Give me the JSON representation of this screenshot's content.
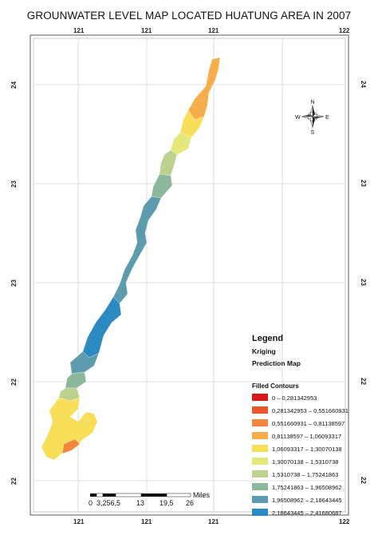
{
  "title": "GROUNWATER LEVEL MAP LOCATED HUATUNG AREA IN 2007",
  "top_ticks": [
    "121",
    "121",
    "121",
    "122"
  ],
  "bottom_ticks": [
    "121",
    "121",
    "121",
    "122"
  ],
  "left_ticks": [
    "24",
    "23",
    "23",
    "22",
    "22"
  ],
  "right_ticks": [
    "24",
    "23",
    "23",
    "22",
    "22"
  ],
  "north_arrow": {
    "n": "N",
    "s": "S",
    "e": "E",
    "w": "W"
  },
  "legend": {
    "title": "Legend",
    "method": "Kriging",
    "layer": "Prediction Map",
    "section": "Filled Contours",
    "classes": [
      {
        "label": "0 – 0,281342953",
        "color": "#d7191c"
      },
      {
        "label": "0,281342953 – 0,551660931",
        "color": "#e9562c"
      },
      {
        "label": "0,551660931 – 0,81138597",
        "color": "#f3873f"
      },
      {
        "label": "0,81138597 – 1,06093317",
        "color": "#f6ae4d"
      },
      {
        "label": "1,06093317 – 1,30070138",
        "color": "#f8df5a"
      },
      {
        "label": "1,30070138 – 1,5310738",
        "color": "#e4e87a"
      },
      {
        "label": "1,5310738 – 1,75241863",
        "color": "#bcd18e"
      },
      {
        "label": "1,75241863 – 1,96508962",
        "color": "#8bb79a"
      },
      {
        "label": "1,96508962 – 2,18643445",
        "color": "#5d9cae"
      },
      {
        "label": "2,18643445 – 2,41680687",
        "color": "#2b8ac2"
      }
    ]
  },
  "scale_bar": {
    "labels": [
      "0",
      "3,256,5",
      "13",
      "19,5",
      "26"
    ],
    "unit": "Miles"
  }
}
